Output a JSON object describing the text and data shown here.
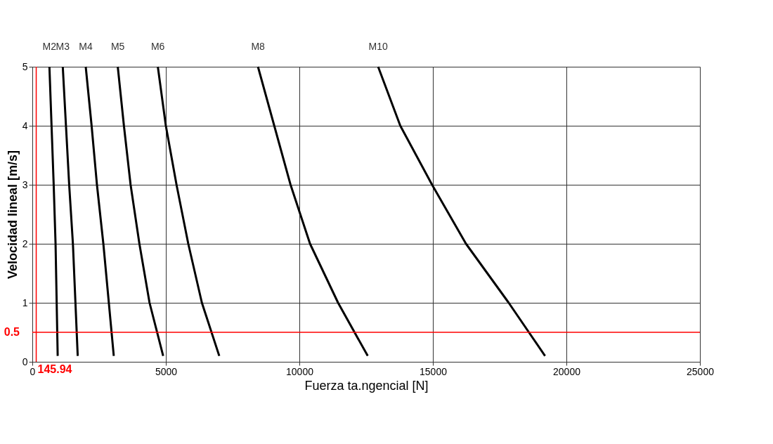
{
  "chart_data": {
    "type": "line",
    "xlabel": "Fuerza ta.ngencial [N]",
    "ylabel": "Velocidad lineal [m/s]",
    "xlim": [
      0,
      25000
    ],
    "xticks": [
      0,
      5000,
      10000,
      15000,
      20000,
      25000
    ],
    "ylim": [
      0,
      5
    ],
    "yticks": [
      0,
      1,
      2,
      3,
      4,
      5
    ],
    "grid": true,
    "marker": "none",
    "line_style": "solid",
    "series": [
      {
        "name": "M2",
        "color": "#000000",
        "x": [
          640,
          720,
          800,
          870,
          950
        ],
        "values": [
          5,
          4,
          3,
          2,
          0.1
        ]
      },
      {
        "name": "M3",
        "color": "#000000",
        "x": [
          1140,
          1260,
          1380,
          1520,
          1700
        ],
        "values": [
          5,
          4,
          3,
          2,
          0.1
        ]
      },
      {
        "name": "M4",
        "color": "#000000",
        "x": [
          2000,
          2220,
          2420,
          2660,
          3050
        ],
        "values": [
          5,
          4,
          3,
          2,
          0.1
        ]
      },
      {
        "name": "M5",
        "color": "#000000",
        "x": [
          3200,
          3430,
          3680,
          4010,
          4390,
          4900
        ],
        "values": [
          5,
          4,
          3,
          2,
          1,
          0.1
        ]
      },
      {
        "name": "M6",
        "color": "#000000",
        "x": [
          4700,
          5000,
          5400,
          5840,
          6350,
          7000
        ],
        "values": [
          5,
          4,
          3,
          2,
          1,
          0.1
        ]
      },
      {
        "name": "M8",
        "color": "#000000",
        "x": [
          8450,
          9060,
          9670,
          10400,
          11450,
          12560
        ],
        "values": [
          5,
          4,
          3,
          2,
          1,
          0.1
        ]
      },
      {
        "name": "M10",
        "color": "#000000",
        "x": [
          12950,
          13780,
          14970,
          16240,
          17840,
          19200
        ],
        "values": [
          5,
          4,
          3,
          2,
          1,
          0.1
        ]
      }
    ],
    "ref_lines": [
      {
        "axis": "x",
        "value": 145.94,
        "label": "145.94",
        "color": "#ff0000"
      },
      {
        "axis": "y",
        "value": 0.5,
        "label": "0.5",
        "color": "#ff0000"
      }
    ]
  }
}
